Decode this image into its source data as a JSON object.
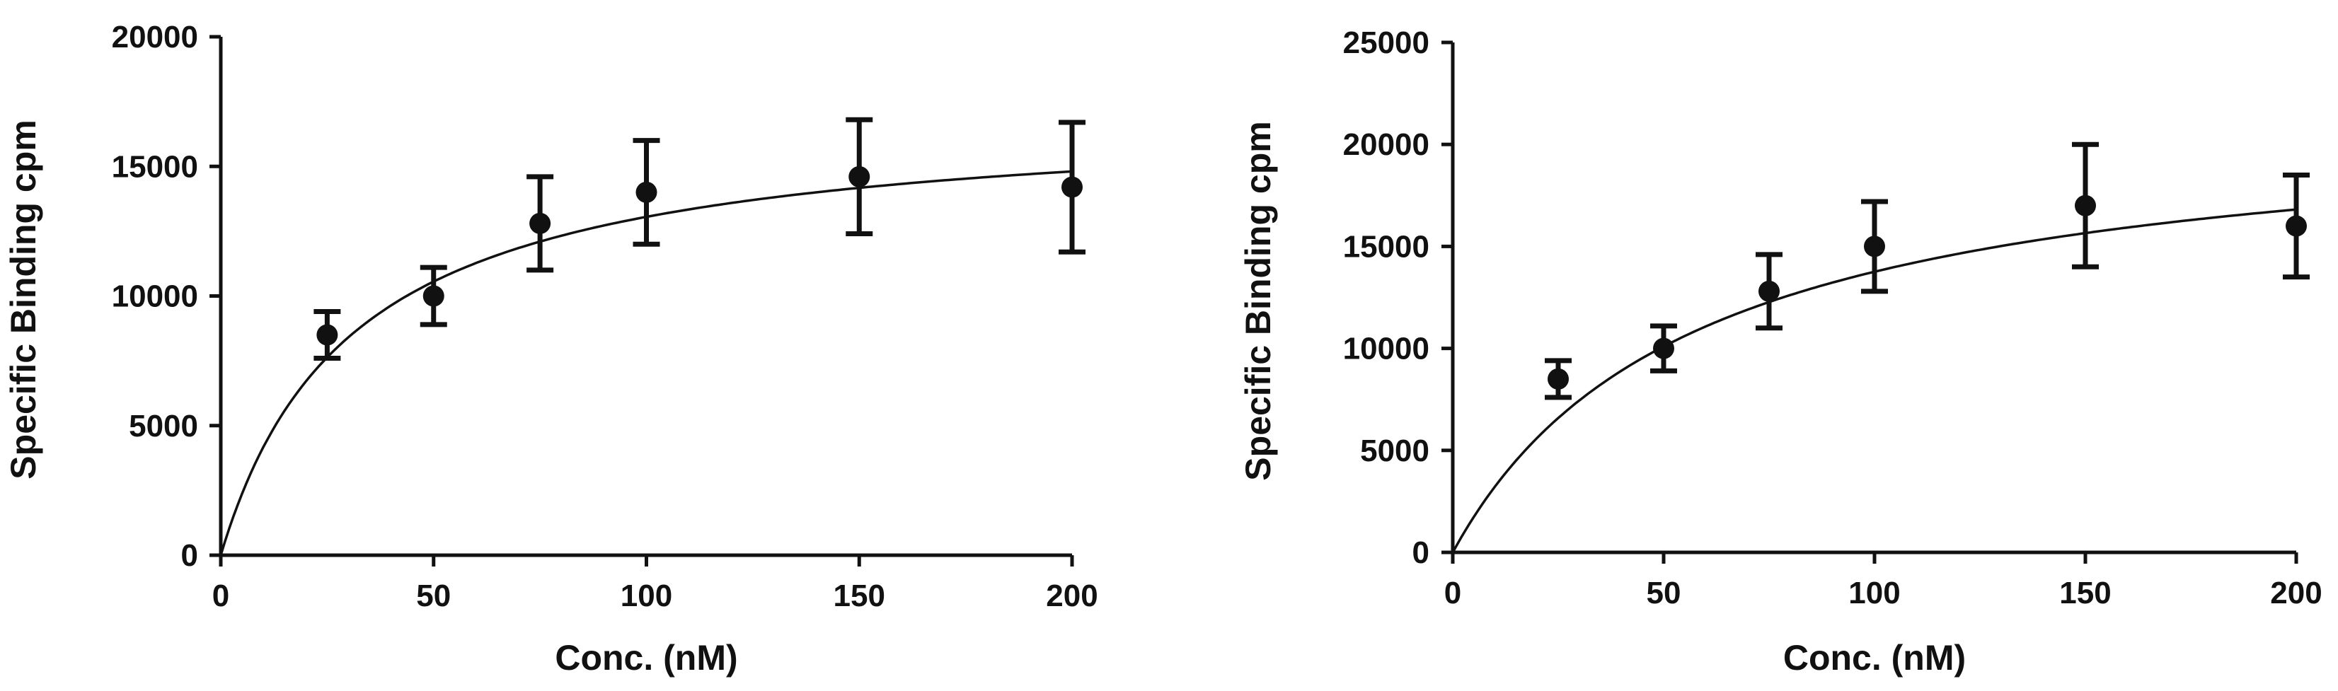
{
  "chart_data": [
    {
      "type": "scatter",
      "title": "",
      "xlabel": "Conc. (nM)",
      "ylabel": "Specific Binding cpm",
      "xlim": [
        0,
        200
      ],
      "ylim": [
        0,
        20000
      ],
      "xticks": [
        "0",
        "50",
        "100",
        "150",
        "200"
      ],
      "yticks": [
        "0",
        "5000",
        "10000",
        "15000",
        "20000"
      ],
      "grid": false,
      "legend": "none",
      "color": "#111111",
      "series": [
        {
          "x": [
            25,
            50,
            75,
            100,
            150,
            200
          ],
          "y": [
            8500,
            10000,
            12800,
            14000,
            14600,
            14200
          ],
          "error": [
            900,
            1100,
            1800,
            2000,
            2200,
            2500
          ]
        }
      ],
      "fit": {
        "model": "one-site saturation binding",
        "bmax": 17100,
        "kd": 31
      }
    },
    {
      "type": "scatter",
      "title": "",
      "xlabel": "Conc. (nM)",
      "ylabel": "Specific Binding cpm",
      "xlim": [
        0,
        200
      ],
      "ylim": [
        0,
        25000
      ],
      "xticks": [
        "0",
        "50",
        "100",
        "150",
        "200"
      ],
      "yticks": [
        "0",
        "5000",
        "10000",
        "15000",
        "20000",
        "25000"
      ],
      "grid": false,
      "legend": "none",
      "color": "#111111",
      "series": [
        {
          "x": [
            25,
            50,
            75,
            100,
            150,
            200
          ],
          "y": [
            8500,
            10000,
            12800,
            15000,
            17000,
            16000
          ],
          "error": [
            900,
            1100,
            1800,
            2200,
            3000,
            2500
          ]
        }
      ],
      "fit": {
        "model": "one-site saturation binding",
        "bmax": 21600,
        "kd": 57
      }
    }
  ]
}
